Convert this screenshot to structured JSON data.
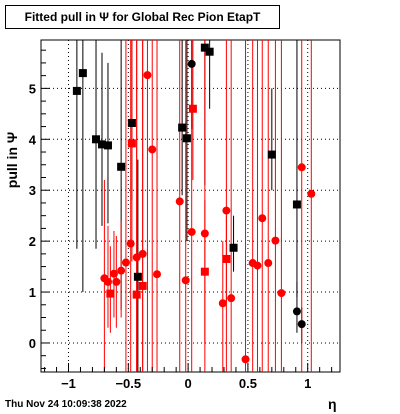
{
  "chart_data": {
    "type": "scatter",
    "title": "Fitted pull in  Ψ  for Global Rec Pion EtapT",
    "xlabel": "η",
    "ylabel": "pull in  Ψ",
    "xlim": [
      -1.23,
      1.27
    ],
    "ylim": [
      -0.57,
      5.95
    ],
    "x_ticks": [
      -1,
      -0.5,
      0,
      0.5,
      1
    ],
    "x_tick_labels": [
      "−1",
      "−0.5",
      "0",
      "0.5",
      "1"
    ],
    "y_ticks": [
      0,
      1,
      2,
      3,
      4,
      5
    ],
    "y_tick_labels": [
      "0",
      "1",
      "2",
      "3",
      "4",
      "5"
    ],
    "grid": true,
    "frame_color": "#000000",
    "series": [
      {
        "color": "#000000",
        "points": [
          {
            "x": -0.93,
            "y": 4.95,
            "lo": 1.85,
            "hi": 5.95,
            "marker": "square"
          },
          {
            "x": -0.88,
            "y": 5.3,
            "lo": 1.0,
            "hi": 5.95,
            "marker": "square"
          },
          {
            "x": -0.77,
            "y": 4.0,
            "lo": 1.85,
            "hi": 5.95,
            "marker": "square"
          },
          {
            "x": -0.72,
            "y": 3.9,
            "lo": 2.3,
            "hi": 5.7,
            "marker": "square"
          },
          {
            "x": -0.67,
            "y": 3.88,
            "lo": 2.35,
            "hi": 5.5,
            "marker": "square"
          },
          {
            "x": -0.56,
            "y": 3.46,
            "lo": 0.65,
            "hi": 5.95,
            "marker": "square"
          },
          {
            "x": -0.47,
            "y": 4.32,
            "lo": 2.8,
            "hi": 5.95,
            "marker": "square"
          },
          {
            "x": -0.42,
            "y": 1.3,
            "lo": -0.57,
            "hi": 3.6,
            "marker": "square"
          },
          {
            "x": -0.05,
            "y": 4.23,
            "lo": 2.9,
            "hi": 5.95,
            "marker": "square"
          },
          {
            "x": -0.01,
            "y": 4.02,
            "lo": 2.0,
            "hi": 5.95,
            "marker": "square"
          },
          {
            "x": 0.14,
            "y": 5.8,
            "lo": 3.1,
            "hi": 5.95,
            "marker": "square"
          },
          {
            "x": 0.18,
            "y": 5.72,
            "lo": 4.6,
            "hi": 5.95,
            "marker": "square"
          },
          {
            "x": 0.03,
            "y": 5.48,
            "lo": 4.2,
            "hi": 5.95,
            "marker": "circle"
          },
          {
            "x": 0.38,
            "y": 1.87,
            "lo": 1.4,
            "hi": 2.5,
            "marker": "square"
          },
          {
            "x": 0.7,
            "y": 3.7,
            "lo": 3.0,
            "hi": 5.0,
            "marker": "square"
          },
          {
            "x": 0.91,
            "y": 2.72,
            "lo": 0.9,
            "hi": 5.95,
            "marker": "square"
          },
          {
            "x": 0.91,
            "y": 0.62,
            "lo": 0.2,
            "hi": 1.2,
            "marker": "circle"
          },
          {
            "x": 0.95,
            "y": 0.37,
            "lo": 0.0,
            "hi": 0.7,
            "marker": "circle"
          }
        ]
      },
      {
        "color": "#ff0000",
        "points": [
          {
            "x": -0.7,
            "y": 1.27,
            "lo": -0.57,
            "hi": 3.2,
            "marker": "circle"
          },
          {
            "x": -0.67,
            "y": 1.2,
            "lo": 0.3,
            "hi": 2.3,
            "marker": "circle"
          },
          {
            "x": -0.65,
            "y": 0.97,
            "lo": 0.2,
            "hi": 1.9,
            "marker": "square"
          },
          {
            "x": -0.62,
            "y": 1.36,
            "lo": 0.5,
            "hi": 2.2,
            "marker": "circle"
          },
          {
            "x": -0.6,
            "y": 1.2,
            "lo": 0.3,
            "hi": 2.1,
            "marker": "circle"
          },
          {
            "x": -0.56,
            "y": 1.42,
            "lo": 0.5,
            "hi": 2.4,
            "marker": "circle"
          },
          {
            "x": -0.52,
            "y": 1.58,
            "lo": -0.57,
            "hi": 5.95,
            "marker": "circle"
          },
          {
            "x": -0.48,
            "y": 1.95,
            "lo": -0.57,
            "hi": 5.95,
            "marker": "circle"
          },
          {
            "x": -0.47,
            "y": 3.92,
            "lo": 1.6,
            "hi": 5.95,
            "marker": "square"
          },
          {
            "x": -0.43,
            "y": 1.68,
            "lo": -0.57,
            "hi": 5.95,
            "marker": "circle"
          },
          {
            "x": -0.43,
            "y": 0.95,
            "lo": -0.57,
            "hi": 5.95,
            "marker": "square"
          },
          {
            "x": -0.38,
            "y": 1.75,
            "lo": -0.57,
            "hi": 5.95,
            "marker": "circle"
          },
          {
            "x": -0.38,
            "y": 1.12,
            "lo": -0.57,
            "hi": 5.95,
            "marker": "square"
          },
          {
            "x": -0.34,
            "y": 5.26,
            "lo": -0.57,
            "hi": 5.95,
            "marker": "circle"
          },
          {
            "x": -0.3,
            "y": 3.8,
            "lo": -0.57,
            "hi": 5.95,
            "marker": "circle"
          },
          {
            "x": -0.26,
            "y": 1.35,
            "lo": -0.57,
            "hi": 5.95,
            "marker": "circle"
          },
          {
            "x": -0.07,
            "y": 2.78,
            "lo": -0.57,
            "hi": 5.95,
            "marker": "circle"
          },
          {
            "x": -0.02,
            "y": 1.23,
            "lo": -0.57,
            "hi": 5.95,
            "marker": "circle"
          },
          {
            "x": 0.03,
            "y": 2.18,
            "lo": -0.57,
            "hi": 5.95,
            "marker": "circle"
          },
          {
            "x": 0.04,
            "y": 4.6,
            "lo": 3.2,
            "hi": 5.95,
            "marker": "square"
          },
          {
            "x": 0.14,
            "y": 2.15,
            "lo": -0.57,
            "hi": 5.95,
            "marker": "circle"
          },
          {
            "x": 0.14,
            "y": 1.4,
            "lo": 0.0,
            "hi": 2.8,
            "marker": "square"
          },
          {
            "x": 0.29,
            "y": 0.78,
            "lo": -0.57,
            "hi": 2.0,
            "marker": "circle"
          },
          {
            "x": 0.32,
            "y": 2.6,
            "lo": -0.57,
            "hi": 5.95,
            "marker": "circle"
          },
          {
            "x": 0.32,
            "y": 1.65,
            "lo": 0.8,
            "hi": 2.5,
            "marker": "square"
          },
          {
            "x": 0.36,
            "y": 0.88,
            "lo": -0.57,
            "hi": 5.95,
            "marker": "circle"
          },
          {
            "x": 0.48,
            "y": -0.32,
            "lo": -0.57,
            "hi": 5.95,
            "marker": "circle"
          },
          {
            "x": 0.54,
            "y": 1.57,
            "lo": -0.57,
            "hi": 5.95,
            "marker": "circle"
          },
          {
            "x": 0.58,
            "y": 1.52,
            "lo": -0.57,
            "hi": 5.95,
            "marker": "circle"
          },
          {
            "x": 0.62,
            "y": 2.45,
            "lo": -0.57,
            "hi": 5.95,
            "marker": "circle"
          },
          {
            "x": 0.67,
            "y": 1.57,
            "lo": -0.57,
            "hi": 5.95,
            "marker": "circle"
          },
          {
            "x": 0.73,
            "y": 2.01,
            "lo": -0.57,
            "hi": 5.95,
            "marker": "circle"
          },
          {
            "x": 0.78,
            "y": 0.98,
            "lo": -0.57,
            "hi": 5.95,
            "marker": "circle"
          },
          {
            "x": 0.95,
            "y": 3.45,
            "lo": -0.57,
            "hi": 5.95,
            "marker": "circle"
          },
          {
            "x": 1.03,
            "y": 2.93,
            "lo": -0.57,
            "hi": 5.95,
            "marker": "circle"
          }
        ]
      }
    ]
  },
  "footer": {
    "timestamp": "Thu Nov 24 10:09:38 2022"
  }
}
